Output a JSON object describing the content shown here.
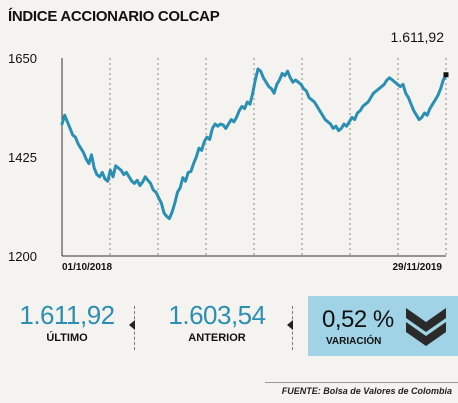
{
  "chart_data": {
    "type": "line",
    "title": "ÍNDICE ACCIONARIO COLCAP",
    "ylim": [
      1200,
      1650
    ],
    "yticks": [
      1650,
      1425,
      1200
    ],
    "x_labels": [
      "01/10/2018",
      "29/11/2019"
    ],
    "last_value_label": "1.611,92",
    "grid": "vertical-dashed",
    "line_color": "#2b8fb4",
    "series": [
      {
        "values": [
          1500,
          1520,
          1505,
          1490,
          1475,
          1470,
          1455,
          1445,
          1435,
          1420,
          1410,
          1430,
          1400,
          1385,
          1380,
          1390,
          1375,
          1370,
          1395,
          1380,
          1405,
          1400,
          1395,
          1385,
          1390,
          1380,
          1370,
          1365,
          1372,
          1360,
          1368,
          1380,
          1372,
          1365,
          1350,
          1345,
          1332,
          1320,
          1298,
          1290,
          1285,
          1300,
          1320,
          1345,
          1355,
          1378,
          1370,
          1390,
          1392,
          1410,
          1425,
          1445,
          1440,
          1460,
          1470,
          1465,
          1490,
          1500,
          1495,
          1500,
          1498,
          1490,
          1500,
          1510,
          1505,
          1515,
          1530,
          1540,
          1535,
          1550,
          1545,
          1570,
          1600,
          1625,
          1620,
          1605,
          1595,
          1585,
          1580,
          1570,
          1590,
          1600,
          1615,
          1610,
          1620,
          1605,
          1595,
          1600,
          1595,
          1590,
          1580,
          1575,
          1560,
          1555,
          1550,
          1540,
          1530,
          1520,
          1510,
          1505,
          1500,
          1490,
          1495,
          1485,
          1490,
          1500,
          1495,
          1505,
          1515,
          1510,
          1525,
          1530,
          1540,
          1545,
          1550,
          1560,
          1570,
          1575,
          1580,
          1585,
          1590,
          1600,
          1605,
          1600,
          1595,
          1590,
          1585,
          1590,
          1570,
          1560,
          1545,
          1530,
          1520,
          1510,
          1515,
          1525,
          1520,
          1535,
          1545,
          1555,
          1565,
          1580,
          1600,
          1611.92
        ]
      }
    ]
  },
  "stats": {
    "ultimo": {
      "value": "1.611,92",
      "label": "ÚLTIMO"
    },
    "anterior": {
      "value": "1.603,54",
      "label": "ANTERIOR"
    },
    "variacion": {
      "value": "0,52 %",
      "label": "VARIACIÓN"
    }
  },
  "source": "FUENTE: Bolsa de Valores de Colombia",
  "colors": {
    "line": "#2b8fb4",
    "variation_box": "#9fd3e5",
    "icon": "#2a2a2a"
  }
}
